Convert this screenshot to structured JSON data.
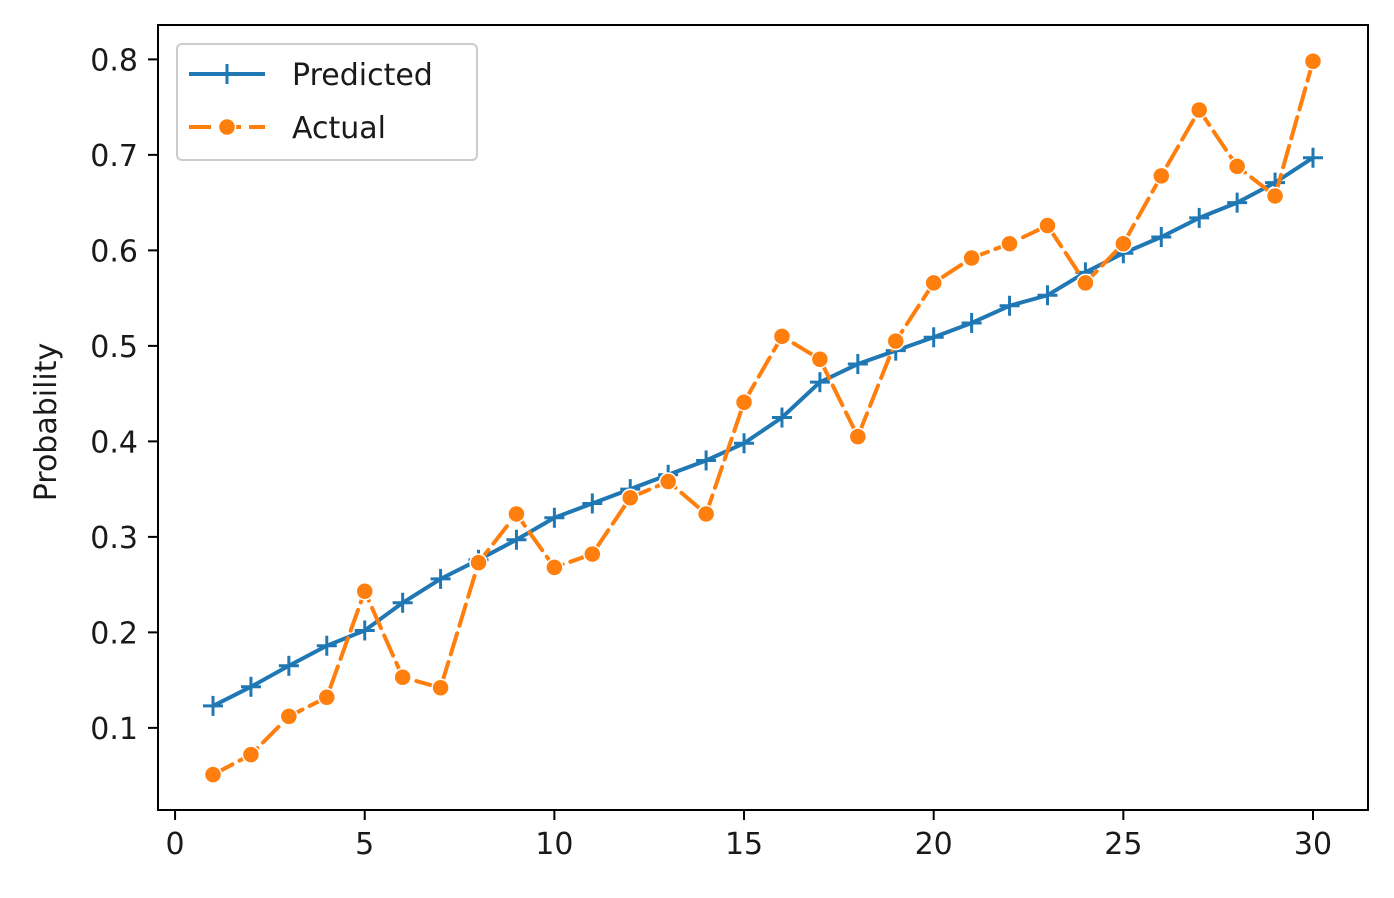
{
  "chart_data": {
    "type": "line",
    "title": "",
    "xlabel": "",
    "ylabel": "Probability",
    "xlim": [
      -0.45,
      31.45
    ],
    "ylim": [
      0.014,
      0.836
    ],
    "xticks": [
      0,
      5,
      10,
      15,
      20,
      25,
      30
    ],
    "yticks": [
      0.1,
      0.2,
      0.3,
      0.4,
      0.5,
      0.6,
      0.7,
      0.8
    ],
    "grid": false,
    "legend_position": "top-left",
    "x": [
      1,
      2,
      3,
      4,
      5,
      6,
      7,
      8,
      9,
      10,
      11,
      12,
      13,
      14,
      15,
      16,
      17,
      18,
      19,
      20,
      21,
      22,
      23,
      24,
      25,
      26,
      27,
      28,
      29,
      30
    ],
    "series": [
      {
        "name": "Predicted",
        "color": "#1f77b4",
        "marker": "plus",
        "line_style": "solid",
        "values": [
          0.123,
          0.143,
          0.165,
          0.186,
          0.202,
          0.231,
          0.256,
          0.276,
          0.297,
          0.32,
          0.335,
          0.35,
          0.365,
          0.38,
          0.398,
          0.425,
          0.462,
          0.481,
          0.495,
          0.509,
          0.524,
          0.542,
          0.553,
          0.577,
          0.597,
          0.614,
          0.634,
          0.65,
          0.671,
          0.697
        ]
      },
      {
        "name": "Actual",
        "color": "#ff7f0e",
        "marker": "circle",
        "line_style": "dashed",
        "values": [
          0.051,
          0.072,
          0.112,
          0.132,
          0.243,
          0.153,
          0.142,
          0.273,
          0.324,
          0.268,
          0.282,
          0.341,
          0.358,
          0.324,
          0.441,
          0.51,
          0.486,
          0.405,
          0.505,
          0.566,
          0.592,
          0.607,
          0.626,
          0.566,
          0.607,
          0.678,
          0.747,
          0.688,
          0.657,
          0.798
        ]
      }
    ]
  }
}
